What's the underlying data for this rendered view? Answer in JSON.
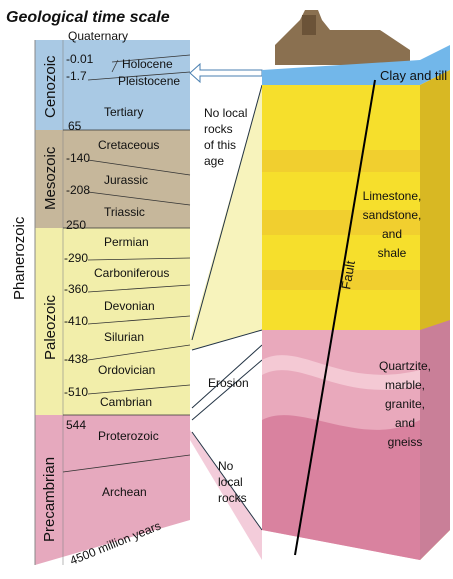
{
  "title": "Geological time scale",
  "eons": {
    "phanerozoic": "Phanerozoic",
    "precambrian": "Precambrian"
  },
  "eras": {
    "cenozoic": "Cenozoic",
    "mesozoic": "Mesozoic",
    "paleozoic": "Paleozoic"
  },
  "periods": {
    "quaternary": "Quaternary",
    "holocene": "Holocene",
    "pleistocene": "Pleistocene",
    "tertiary": "Tertiary",
    "cretaceous": "Cretaceous",
    "jurassic": "Jurassic",
    "triassic": "Triassic",
    "permian": "Permian",
    "carboniferous": "Carboniferous",
    "devonian": "Devonian",
    "silurian": "Silurian",
    "ordovician": "Ordovician",
    "cambrian": "Cambrian",
    "proterozoic": "Proterozoic",
    "archean": "Archean"
  },
  "ages": [
    "-0.01",
    "-1.7",
    "65",
    "-140",
    "-208",
    "250",
    "-290",
    "-360",
    "-410",
    "-438",
    "-510",
    "544"
  ],
  "oldest": "4500 million years",
  "notes": {
    "no_rocks_1": [
      "No local",
      "rocks",
      "of this",
      "age"
    ],
    "erosion": "Erosion",
    "no_rocks_2": [
      "No",
      "local",
      "rocks"
    ]
  },
  "block": {
    "clay": "Clay and till",
    "limestone": [
      "Limestone,",
      "sandstone,",
      "and",
      "shale"
    ],
    "quartzite": [
      "Quartzite,",
      "marble,",
      "granite,",
      "and",
      "gneiss"
    ],
    "fault": "Fault"
  }
}
